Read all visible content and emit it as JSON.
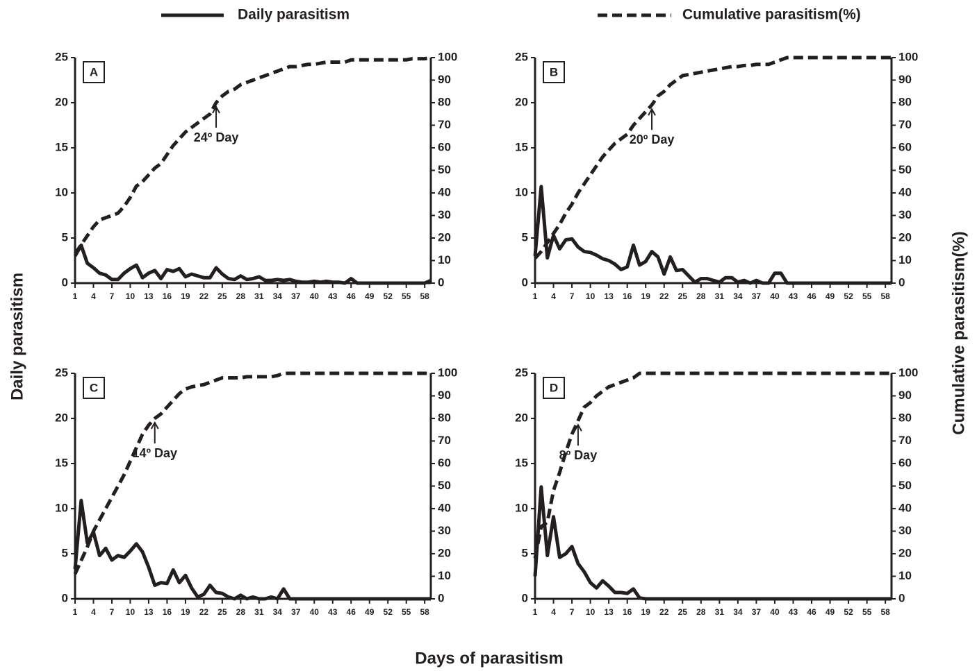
{
  "figure": {
    "x_label": "Days of parasitism",
    "y_label": "Daily parasitism",
    "y2_label": "Cumulative parasitism(%)"
  },
  "chart_data": [
    {
      "type": "line",
      "panel": "A",
      "x": [
        1,
        2,
        3,
        4,
        5,
        6,
        7,
        8,
        9,
        10,
        11,
        12,
        13,
        14,
        15,
        16,
        17,
        18,
        19,
        20,
        21,
        22,
        23,
        24,
        25,
        26,
        27,
        28,
        29,
        30,
        31,
        32,
        33,
        34,
        35,
        36,
        37,
        38,
        39,
        40,
        41,
        42,
        43,
        44,
        45,
        46,
        47,
        48,
        49,
        50,
        51,
        52,
        53,
        54,
        55,
        56,
        57,
        58,
        59
      ],
      "series": [
        {
          "name": "Daily parasitism",
          "color": "#231f20",
          "dash": false,
          "axis": "y",
          "values": [
            3,
            4.2,
            2.2,
            1.7,
            1.1,
            0.9,
            0.4,
            0.4,
            1.1,
            1.6,
            2.0,
            0.6,
            1.1,
            1.4,
            0.5,
            1.5,
            1.3,
            1.6,
            0.7,
            1.0,
            0.8,
            0.6,
            0.6,
            1.7,
            1.0,
            0.5,
            0.4,
            0.8,
            0.4,
            0.5,
            0.7,
            0.3,
            0.3,
            0.4,
            0.3,
            0.4,
            0.2,
            0.1,
            0.1,
            0.2,
            0.1,
            0.2,
            0.1,
            0.1,
            0,
            0.5,
            0,
            0,
            0,
            0,
            0,
            0,
            0,
            0,
            0,
            0,
            0,
            0,
            0.3
          ]
        },
        {
          "name": "Cumulative parasitism(%)",
          "color": "#231f20",
          "dash": true,
          "axis": "y2",
          "values": [
            13,
            17,
            21,
            25,
            28,
            29,
            30,
            31,
            34,
            38,
            43,
            45,
            48,
            51,
            53,
            57,
            61,
            64,
            67,
            69,
            71,
            73,
            75,
            80,
            83,
            85,
            86,
            88,
            89,
            90,
            91,
            92,
            93,
            94,
            95,
            96,
            96,
            96.5,
            97,
            97,
            97.5,
            98,
            98,
            98,
            98,
            99,
            99,
            99,
            99,
            99,
            99,
            99,
            99,
            99,
            99,
            99.5,
            99.5,
            99.5,
            100
          ]
        }
      ],
      "annotation": {
        "text": "24º Day",
        "x": 24
      },
      "xlim": [
        1,
        59
      ],
      "xticks": [
        1,
        4,
        7,
        10,
        13,
        16,
        19,
        22,
        25,
        28,
        31,
        34,
        37,
        40,
        43,
        46,
        49,
        52,
        55,
        58
      ],
      "ylim": [
        0,
        25
      ],
      "yticks": [
        0,
        5,
        10,
        15,
        20,
        25
      ],
      "y2lim": [
        0,
        100
      ],
      "y2ticks": [
        0,
        10,
        20,
        30,
        40,
        50,
        60,
        70,
        80,
        90,
        100
      ]
    },
    {
      "type": "line",
      "panel": "B",
      "x": [
        1,
        2,
        3,
        4,
        5,
        6,
        7,
        8,
        9,
        10,
        11,
        12,
        13,
        14,
        15,
        16,
        17,
        18,
        19,
        20,
        21,
        22,
        23,
        24,
        25,
        26,
        27,
        28,
        29,
        30,
        31,
        32,
        33,
        34,
        35,
        36,
        37,
        38,
        39,
        40,
        41,
        42,
        43,
        44,
        45,
        46,
        47,
        48,
        49,
        50,
        51,
        52,
        53,
        54,
        55,
        56,
        57,
        58,
        59
      ],
      "series": [
        {
          "name": "Daily parasitism",
          "color": "#231f20",
          "dash": false,
          "axis": "y",
          "values": [
            3,
            10.7,
            2.8,
            5.3,
            3.8,
            4.8,
            4.9,
            4.0,
            3.5,
            3.4,
            3.1,
            2.7,
            2.5,
            2.1,
            1.5,
            1.8,
            4.2,
            2.0,
            2.4,
            3.5,
            2.9,
            1.0,
            2.9,
            1.4,
            1.5,
            0.8,
            0.1,
            0.5,
            0.5,
            0.3,
            0.1,
            0.6,
            0.6,
            0.1,
            0.3,
            0,
            0.3,
            0,
            0,
            1.1,
            1.1,
            0,
            0,
            0,
            0,
            0,
            0,
            0,
            0,
            0,
            0,
            0,
            0,
            0,
            0,
            0,
            0,
            0,
            0
          ]
        },
        {
          "name": "Cumulative parasitism(%)",
          "color": "#231f20",
          "dash": true,
          "axis": "y2",
          "values": [
            11,
            14,
            18,
            22,
            26,
            31,
            35,
            40,
            44,
            48,
            52,
            56,
            59,
            62,
            64,
            66,
            70,
            73,
            76,
            79,
            83,
            85,
            88,
            90,
            92,
            92.5,
            93,
            93.5,
            94,
            94.5,
            95,
            95.5,
            96,
            96,
            96.5,
            96.5,
            97,
            97,
            97,
            98,
            99,
            100,
            100,
            100,
            100,
            100,
            100,
            100,
            100,
            100,
            100,
            100,
            100,
            100,
            100,
            100,
            100,
            100,
            100
          ]
        }
      ],
      "annotation": {
        "text": "20º Day",
        "x": 20
      },
      "xlim": [
        1,
        59
      ],
      "xticks": [
        1,
        4,
        7,
        10,
        13,
        16,
        19,
        22,
        25,
        28,
        31,
        34,
        37,
        40,
        43,
        46,
        49,
        52,
        55,
        58
      ],
      "ylim": [
        0,
        25
      ],
      "yticks": [
        0,
        5,
        10,
        15,
        20,
        25
      ],
      "y2lim": [
        0,
        100
      ],
      "y2ticks": [
        0,
        10,
        20,
        30,
        40,
        50,
        60,
        70,
        80,
        90,
        100
      ]
    },
    {
      "type": "line",
      "panel": "C",
      "x": [
        1,
        2,
        3,
        4,
        5,
        6,
        7,
        8,
        9,
        10,
        11,
        12,
        13,
        14,
        15,
        16,
        17,
        18,
        19,
        20,
        21,
        22,
        23,
        24,
        25,
        26,
        27,
        28,
        29,
        30,
        31,
        32,
        33,
        34,
        35,
        36,
        37,
        38,
        39,
        40,
        41,
        42,
        43,
        44,
        45,
        46,
        47,
        48,
        49,
        50,
        51,
        52,
        53,
        54,
        55,
        56,
        57,
        58,
        59
      ],
      "series": [
        {
          "name": "Daily parasitism",
          "color": "#231f20",
          "dash": false,
          "axis": "y",
          "values": [
            3.3,
            10.9,
            6.2,
            7.4,
            4.8,
            5.6,
            4.3,
            4.8,
            4.6,
            5.3,
            6.1,
            5.2,
            3.5,
            1.5,
            1.8,
            1.7,
            3.2,
            1.8,
            2.6,
            1.2,
            0.2,
            0.5,
            1.5,
            0.7,
            0.6,
            0.2,
            0,
            0.4,
            0,
            0.2,
            0,
            0,
            0.2,
            0,
            1.1,
            0,
            0,
            0,
            0,
            0,
            0,
            0,
            0,
            0,
            0,
            0,
            0,
            0,
            0,
            0,
            0,
            0,
            0,
            0,
            0,
            0,
            0,
            0,
            0
          ]
        },
        {
          "name": "Cumulative parasitism(%)",
          "color": "#231f20",
          "dash": true,
          "axis": "y2",
          "values": [
            11,
            17,
            23,
            30,
            35,
            40,
            45,
            50,
            55,
            61,
            67,
            73,
            77,
            80,
            82,
            85,
            88,
            91,
            93,
            94,
            94.5,
            95,
            96,
            97,
            98,
            98,
            98,
            98,
            98.5,
            98.5,
            98.5,
            98.5,
            98.5,
            99,
            100,
            100,
            100,
            100,
            100,
            100,
            100,
            100,
            100,
            100,
            100,
            100,
            100,
            100,
            100,
            100,
            100,
            100,
            100,
            100,
            100,
            100,
            100,
            100,
            100
          ]
        }
      ],
      "annotation": {
        "text": "14º Day",
        "x": 14
      },
      "xlim": [
        1,
        59
      ],
      "xticks": [
        1,
        4,
        7,
        10,
        13,
        16,
        19,
        22,
        25,
        28,
        31,
        34,
        37,
        40,
        43,
        46,
        49,
        52,
        55,
        58
      ],
      "ylim": [
        0,
        25
      ],
      "yticks": [
        0,
        5,
        10,
        15,
        20,
        25
      ],
      "y2lim": [
        0,
        100
      ],
      "y2ticks": [
        0,
        10,
        20,
        30,
        40,
        50,
        60,
        70,
        80,
        90,
        100
      ]
    },
    {
      "type": "line",
      "panel": "D",
      "x": [
        1,
        2,
        3,
        4,
        5,
        6,
        7,
        8,
        9,
        10,
        11,
        12,
        13,
        14,
        15,
        16,
        17,
        18,
        19,
        20,
        21,
        22,
        23,
        24,
        25,
        26,
        27,
        28,
        29,
        30,
        31,
        32,
        33,
        34,
        35,
        36,
        37,
        38,
        39,
        40,
        41,
        42,
        43,
        44,
        45,
        46,
        47,
        48,
        49,
        50,
        51,
        52,
        53,
        54,
        55,
        56,
        57,
        58,
        59
      ],
      "series": [
        {
          "name": "Daily parasitism",
          "color": "#231f20",
          "dash": false,
          "axis": "y",
          "values": [
            2.5,
            12.4,
            4.8,
            9.1,
            4.6,
            5.0,
            5.8,
            3.9,
            3.0,
            1.8,
            1.2,
            2.0,
            1.4,
            0.7,
            0.7,
            0.6,
            1.1,
            0.1,
            0,
            0,
            0,
            0,
            0,
            0,
            0,
            0,
            0,
            0,
            0,
            0,
            0,
            0,
            0,
            0,
            0,
            0,
            0,
            0,
            0,
            0,
            0,
            0,
            0,
            0,
            0,
            0,
            0,
            0,
            0,
            0,
            0,
            0,
            0,
            0,
            0,
            0,
            0,
            0,
            0
          ]
        },
        {
          "name": "Cumulative parasitism(%)",
          "color": "#231f20",
          "dash": true,
          "axis": "y2",
          "values": [
            18,
            32,
            34,
            48,
            56,
            65,
            73,
            79,
            85,
            87,
            90,
            92,
            94,
            95,
            96,
            97,
            98,
            100,
            100,
            100,
            100,
            100,
            100,
            100,
            100,
            100,
            100,
            100,
            100,
            100,
            100,
            100,
            100,
            100,
            100,
            100,
            100,
            100,
            100,
            100,
            100,
            100,
            100,
            100,
            100,
            100,
            100,
            100,
            100,
            100,
            100,
            100,
            100,
            100,
            100,
            100,
            100,
            100,
            100
          ]
        }
      ],
      "annotation": {
        "text": "8º Day",
        "x": 8
      },
      "xlim": [
        1,
        59
      ],
      "xticks": [
        1,
        4,
        7,
        10,
        13,
        16,
        19,
        22,
        25,
        28,
        31,
        34,
        37,
        40,
        43,
        46,
        49,
        52,
        55,
        58
      ],
      "ylim": [
        0,
        25
      ],
      "yticks": [
        0,
        5,
        10,
        15,
        20,
        25
      ],
      "y2lim": [
        0,
        100
      ],
      "y2ticks": [
        0,
        10,
        20,
        30,
        40,
        50,
        60,
        70,
        80,
        90,
        100
      ]
    }
  ]
}
